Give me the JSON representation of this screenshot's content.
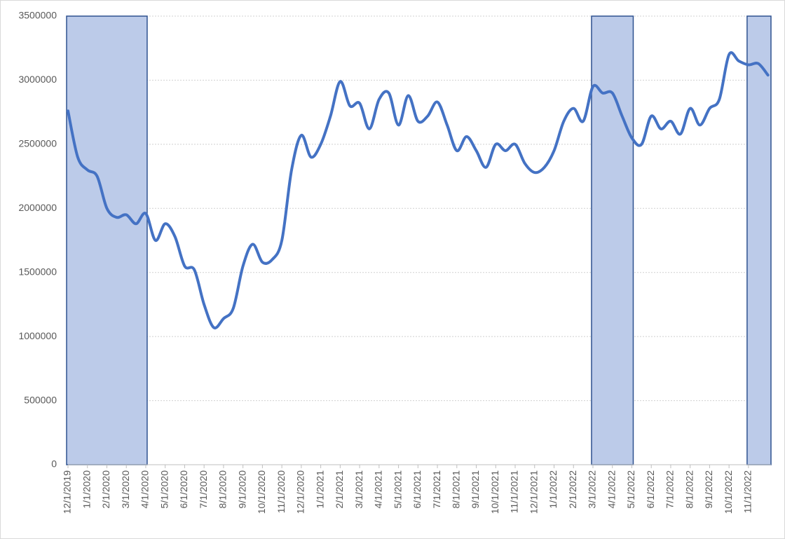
{
  "chart_data": {
    "type": "line",
    "categories": [
      "12/1/2019",
      null,
      "1/1/2020",
      null,
      "2/1/2020",
      null,
      "3/1/2020",
      null,
      "4/1/2020",
      null,
      "5/1/2020",
      null,
      "6/1/2020",
      null,
      "7/1/2020",
      null,
      "8/1/2020",
      null,
      "9/1/2020",
      null,
      "10/1/2020",
      null,
      "11/1/2020",
      null,
      "12/1/2020",
      null,
      "1/1/2021",
      null,
      "2/1/2021",
      null,
      "3/1/2021",
      null,
      "4/1/2021",
      null,
      "5/1/2021",
      null,
      "6/1/2021",
      null,
      "7/1/2021",
      null,
      "8/1/2021",
      null,
      "9/1/2021",
      null,
      "10/1/2021",
      null,
      "11/1/2021",
      null,
      "12/1/2021",
      null,
      "1/1/2022",
      null,
      "2/1/2022",
      null,
      "3/1/2022",
      null,
      "4/1/2022",
      null,
      "5/1/2022",
      null,
      "6/1/2022",
      null,
      "7/1/2022",
      null,
      "8/1/2022",
      null,
      "9/1/2022",
      null,
      "10/1/2022",
      null,
      "11/1/2022",
      null,
      null
    ],
    "series": [
      {
        "color": "#4472c4",
        "values": [
          2760000,
          2400000,
          2300000,
          2250000,
          2000000,
          1930000,
          1950000,
          1880000,
          1960000,
          1750000,
          1880000,
          1780000,
          1550000,
          1520000,
          1250000,
          1070000,
          1140000,
          1220000,
          1550000,
          1720000,
          1580000,
          1600000,
          1750000,
          2300000,
          2570000,
          2400000,
          2500000,
          2720000,
          2990000,
          2800000,
          2820000,
          2620000,
          2850000,
          2900000,
          2650000,
          2880000,
          2680000,
          2720000,
          2830000,
          2650000,
          2450000,
          2560000,
          2450000,
          2320000,
          2500000,
          2450000,
          2500000,
          2350000,
          2280000,
          2320000,
          2450000,
          2680000,
          2780000,
          2680000,
          2950000,
          2900000,
          2900000,
          2720000,
          2550000,
          2500000,
          2720000,
          2620000,
          2680000,
          2580000,
          2780000,
          2650000,
          2780000,
          2850000,
          3200000,
          3150000,
          3120000,
          3130000,
          3040000
        ]
      }
    ],
    "shade": {
      "color": "#bccbe9",
      "edge": "#2f528f",
      "values": [
        3500000,
        3500000,
        3500000,
        3500000,
        3500000,
        3500000,
        3500000,
        3500000,
        3500000,
        null,
        null,
        null,
        null,
        null,
        null,
        null,
        null,
        null,
        null,
        null,
        null,
        null,
        null,
        null,
        null,
        null,
        null,
        null,
        null,
        null,
        null,
        null,
        null,
        null,
        null,
        null,
        null,
        null,
        null,
        null,
        null,
        null,
        null,
        null,
        null,
        null,
        null,
        null,
        null,
        null,
        null,
        null,
        null,
        null,
        3500000,
        3500000,
        3500000,
        3500000,
        3500000,
        null,
        null,
        null,
        null,
        null,
        null,
        null,
        null,
        null,
        null,
        null,
        3500000,
        3500000,
        3500000
      ]
    },
    "ylim": [
      0,
      3500000
    ],
    "yticks": [
      0,
      500000,
      1000000,
      1500000,
      2000000,
      2500000,
      3000000,
      3500000
    ],
    "grid": true
  }
}
